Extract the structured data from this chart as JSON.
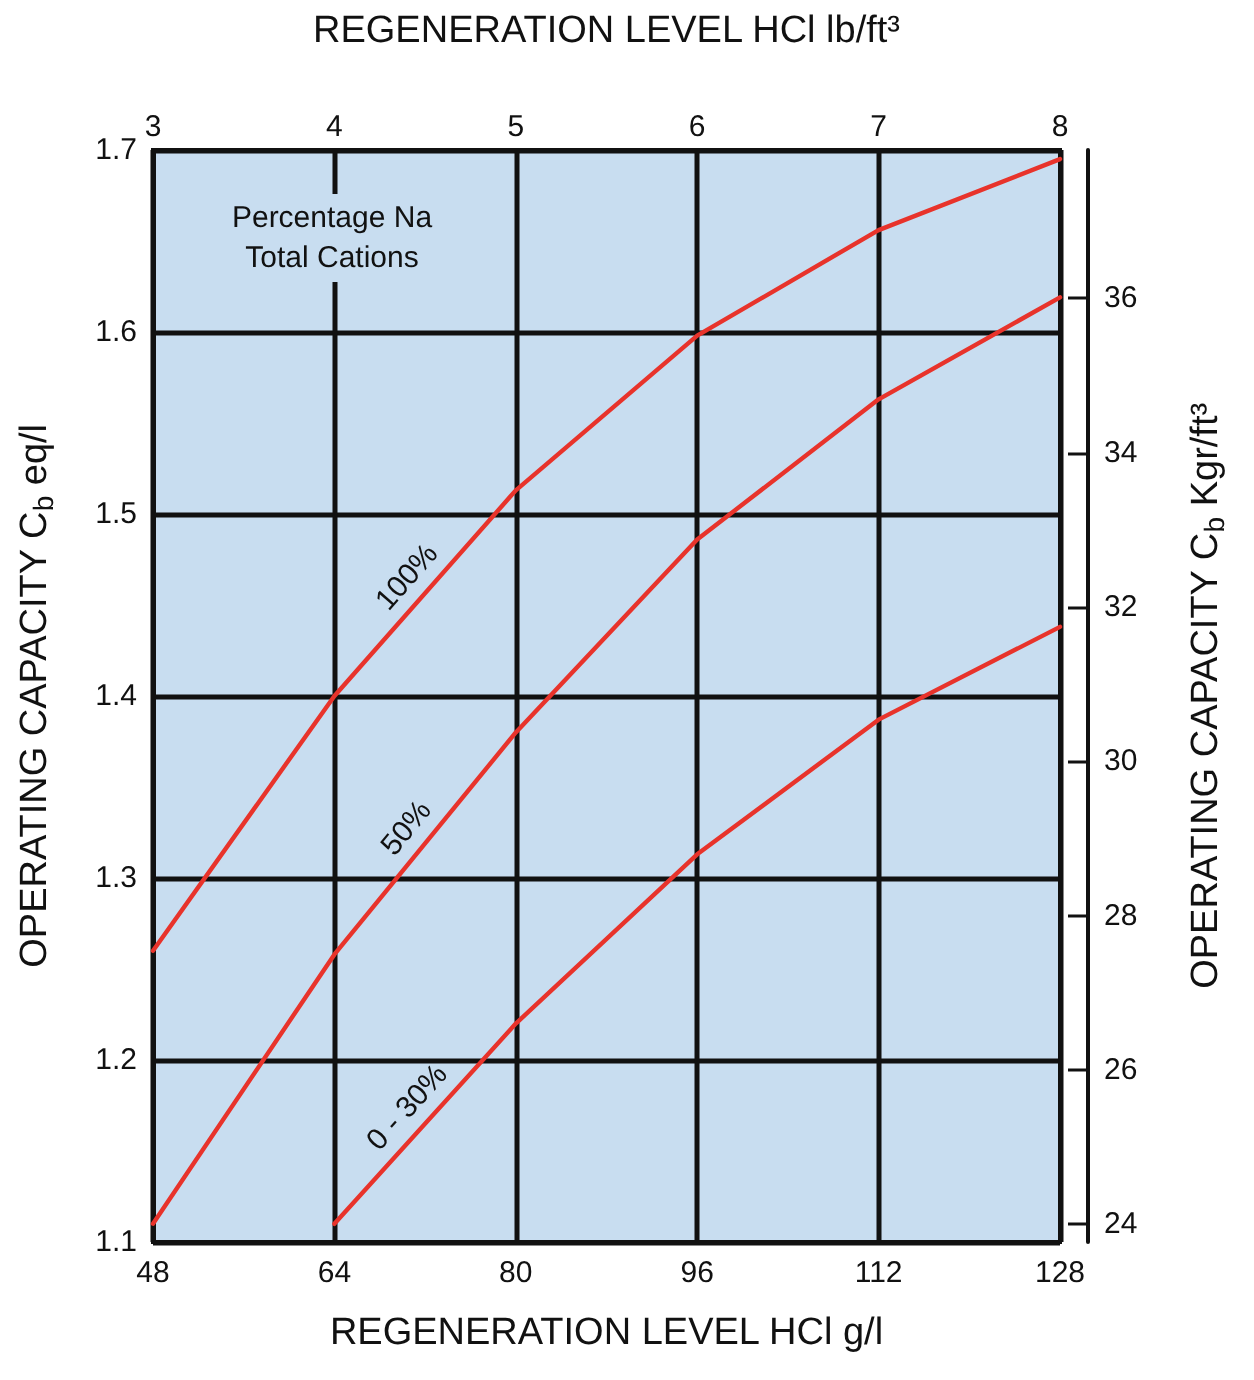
{
  "chart_data": {
    "type": "line",
    "x2label": "REGENERATION LEVEL HCl lb/ft³",
    "xlabel": "REGENERATION LEVEL HCl g/l",
    "ylabel": "OPERATING CAPACITY C$_{b}$ eq/l",
    "y2label": "OPERATING CAPACITY C$_{b}$ Kgr/ft³",
    "annotations": [
      "Percentage Na\nTotal Cations"
    ],
    "x": [
      48,
      64,
      80,
      96,
      112,
      128
    ],
    "series": [
      {
        "name": "100%",
        "color": "#e8332b",
        "values": [
          1.26,
          1.4,
          1.513,
          1.598,
          1.656,
          1.695
        ]
      },
      {
        "name": "50%",
        "color": "#e8332b",
        "values": [
          1.11,
          1.258,
          1.38,
          1.486,
          1.563,
          1.619
        ]
      },
      {
        "name": "0 - 30%",
        "color": "#e8332b",
        "values": [
          null,
          1.11,
          1.22,
          1.313,
          1.387,
          1.438
        ]
      }
    ],
    "xlim": [
      48,
      128
    ],
    "xticks": [
      48,
      64,
      80,
      96,
      112,
      128
    ],
    "x2lim": [
      3,
      8
    ],
    "x2ticks": [
      3,
      4,
      5,
      6,
      7,
      8
    ],
    "ylim": [
      1.1,
      1.7
    ],
    "yticks": [
      1.1,
      1.2,
      1.3,
      1.4,
      1.5,
      1.6,
      1.7
    ],
    "y2lim": [
      23.77,
      37.92
    ],
    "y2ticks": [
      24,
      26,
      28,
      30,
      32,
      34,
      36
    ],
    "grid": true,
    "legend": false,
    "marker": "none",
    "line_style": "solid"
  }
}
